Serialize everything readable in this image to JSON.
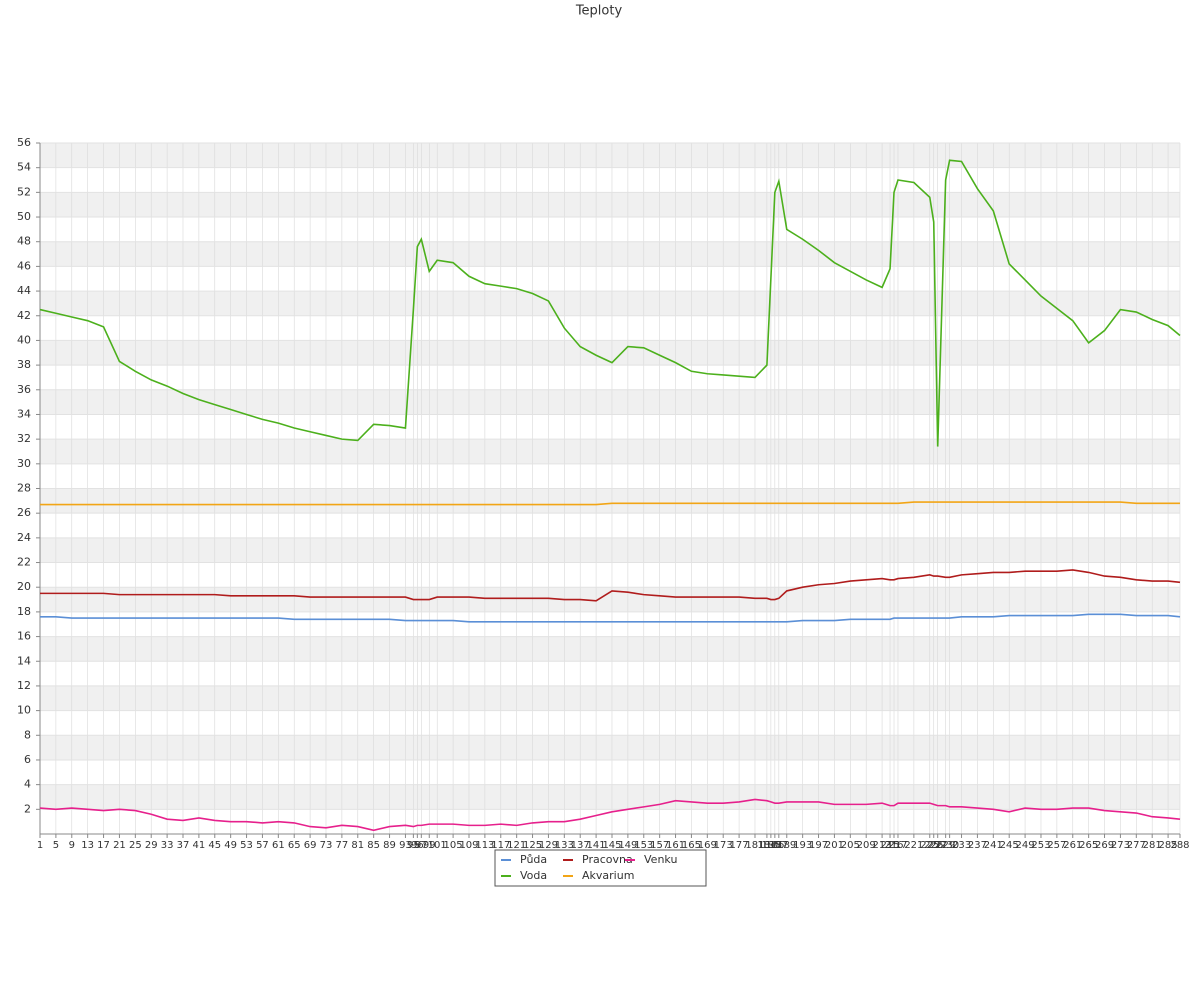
{
  "chart_data": {
    "type": "line",
    "title": "Teploty",
    "x": [
      1,
      5,
      9,
      13,
      17,
      21,
      25,
      29,
      33,
      37,
      41,
      45,
      49,
      53,
      57,
      61,
      65,
      69,
      73,
      77,
      81,
      85,
      89,
      93,
      95,
      96,
      97,
      99,
      101,
      105,
      109,
      113,
      117,
      121,
      125,
      129,
      133,
      137,
      141,
      145,
      149,
      153,
      157,
      161,
      165,
      169,
      173,
      177,
      181,
      184,
      185,
      186,
      187,
      189,
      193,
      197,
      201,
      205,
      209,
      213,
      215,
      216,
      217,
      221,
      225,
      226,
      227,
      229,
      230,
      233,
      237,
      241,
      245,
      249,
      253,
      257,
      261,
      265,
      269,
      273,
      277,
      281,
      285,
      288
    ],
    "xlim": [
      1,
      288
    ],
    "ylim": [
      0,
      56
    ],
    "yticks": [
      2,
      4,
      6,
      8,
      10,
      12,
      14,
      16,
      18,
      20,
      22,
      24,
      26,
      28,
      30,
      32,
      34,
      36,
      38,
      40,
      42,
      44,
      46,
      48,
      50,
      52,
      54,
      56
    ],
    "grid": true,
    "legend": "bottom",
    "series": [
      {
        "name": "Půda",
        "color": "#5b8fd6",
        "values": [
          17.6,
          17.6,
          17.5,
          17.5,
          17.5,
          17.5,
          17.5,
          17.5,
          17.5,
          17.5,
          17.5,
          17.5,
          17.5,
          17.5,
          17.5,
          17.5,
          17.4,
          17.4,
          17.4,
          17.4,
          17.4,
          17.4,
          17.4,
          17.3,
          17.3,
          17.3,
          17.3,
          17.3,
          17.3,
          17.3,
          17.2,
          17.2,
          17.2,
          17.2,
          17.2,
          17.2,
          17.2,
          17.2,
          17.2,
          17.2,
          17.2,
          17.2,
          17.2,
          17.2,
          17.2,
          17.2,
          17.2,
          17.2,
          17.2,
          17.2,
          17.2,
          17.2,
          17.2,
          17.2,
          17.3,
          17.3,
          17.3,
          17.4,
          17.4,
          17.4,
          17.4,
          17.5,
          17.5,
          17.5,
          17.5,
          17.5,
          17.5,
          17.5,
          17.5,
          17.6,
          17.6,
          17.6,
          17.7,
          17.7,
          17.7,
          17.7,
          17.7,
          17.8,
          17.8,
          17.8,
          17.7,
          17.7,
          17.7,
          17.6
        ]
      },
      {
        "name": "Voda",
        "color": "#4cb01c",
        "values": [
          42.5,
          42.2,
          41.9,
          41.6,
          41.1,
          38.3,
          37.5,
          36.8,
          36.3,
          35.7,
          35.2,
          34.8,
          34.4,
          34.0,
          33.6,
          33.3,
          32.9,
          32.6,
          32.3,
          32.0,
          31.9,
          33.2,
          33.1,
          32.9,
          42.5,
          47.6,
          48.2,
          45.6,
          46.5,
          46.3,
          45.2,
          44.6,
          44.4,
          44.2,
          43.8,
          43.2,
          41.0,
          39.5,
          38.8,
          38.2,
          39.5,
          39.4,
          38.8,
          38.2,
          37.5,
          37.3,
          37.2,
          37.1,
          37.0,
          38.0,
          45.0,
          52.0,
          52.9,
          49.0,
          48.2,
          47.3,
          46.3,
          45.6,
          44.9,
          44.3,
          45.8,
          52.0,
          53.0,
          52.8,
          51.6,
          49.6,
          31.4,
          53.0,
          54.6,
          54.5,
          52.3,
          50.5,
          46.2,
          44.9,
          43.6,
          42.6,
          41.6,
          39.8,
          40.8,
          42.5,
          42.3,
          41.7,
          41.2,
          40.4
        ]
      },
      {
        "name": "Pracovna",
        "color": "#b01c1c",
        "values": [
          19.5,
          19.5,
          19.5,
          19.5,
          19.5,
          19.4,
          19.4,
          19.4,
          19.4,
          19.4,
          19.4,
          19.4,
          19.3,
          19.3,
          19.3,
          19.3,
          19.3,
          19.2,
          19.2,
          19.2,
          19.2,
          19.2,
          19.2,
          19.2,
          19.0,
          19.0,
          19.0,
          19.0,
          19.2,
          19.2,
          19.2,
          19.1,
          19.1,
          19.1,
          19.1,
          19.1,
          19.0,
          19.0,
          18.9,
          19.7,
          19.6,
          19.4,
          19.3,
          19.2,
          19.2,
          19.2,
          19.2,
          19.2,
          19.1,
          19.1,
          19.0,
          19.0,
          19.1,
          19.7,
          20.0,
          20.2,
          20.3,
          20.5,
          20.6,
          20.7,
          20.6,
          20.6,
          20.7,
          20.8,
          21.0,
          20.9,
          20.9,
          20.8,
          20.8,
          21.0,
          21.1,
          21.2,
          21.2,
          21.3,
          21.3,
          21.3,
          21.4,
          21.2,
          20.9,
          20.8,
          20.6,
          20.5,
          20.5,
          20.4
        ]
      },
      {
        "name": "Akvarium",
        "color": "#f2a516",
        "values": [
          26.7,
          26.7,
          26.7,
          26.7,
          26.7,
          26.7,
          26.7,
          26.7,
          26.7,
          26.7,
          26.7,
          26.7,
          26.7,
          26.7,
          26.7,
          26.7,
          26.7,
          26.7,
          26.7,
          26.7,
          26.7,
          26.7,
          26.7,
          26.7,
          26.7,
          26.7,
          26.7,
          26.7,
          26.7,
          26.7,
          26.7,
          26.7,
          26.7,
          26.7,
          26.7,
          26.7,
          26.7,
          26.7,
          26.7,
          26.8,
          26.8,
          26.8,
          26.8,
          26.8,
          26.8,
          26.8,
          26.8,
          26.8,
          26.8,
          26.8,
          26.8,
          26.8,
          26.8,
          26.8,
          26.8,
          26.8,
          26.8,
          26.8,
          26.8,
          26.8,
          26.8,
          26.8,
          26.8,
          26.9,
          26.9,
          26.9,
          26.9,
          26.9,
          26.9,
          26.9,
          26.9,
          26.9,
          26.9,
          26.9,
          26.9,
          26.9,
          26.9,
          26.9,
          26.9,
          26.9,
          26.8,
          26.8,
          26.8,
          26.8
        ]
      },
      {
        "name": "Venku",
        "color": "#e6208c",
        "values": [
          2.1,
          2.0,
          2.1,
          2.0,
          1.9,
          2.0,
          1.9,
          1.6,
          1.2,
          1.1,
          1.3,
          1.1,
          1.0,
          1.0,
          0.9,
          1.0,
          0.9,
          0.6,
          0.5,
          0.7,
          0.6,
          0.3,
          0.6,
          0.7,
          0.6,
          0.7,
          0.7,
          0.8,
          0.8,
          0.8,
          0.7,
          0.7,
          0.8,
          0.7,
          0.9,
          1.0,
          1.0,
          1.2,
          1.5,
          1.8,
          2.0,
          2.2,
          2.4,
          2.7,
          2.6,
          2.5,
          2.5,
          2.6,
          2.8,
          2.7,
          2.6,
          2.5,
          2.5,
          2.6,
          2.6,
          2.6,
          2.4,
          2.4,
          2.4,
          2.5,
          2.3,
          2.3,
          2.5,
          2.5,
          2.5,
          2.4,
          2.3,
          2.3,
          2.2,
          2.2,
          2.1,
          2.0,
          1.8,
          2.1,
          2.0,
          2.0,
          2.1,
          2.1,
          1.9,
          1.8,
          1.7,
          1.4,
          1.3,
          1.2
        ]
      }
    ]
  }
}
